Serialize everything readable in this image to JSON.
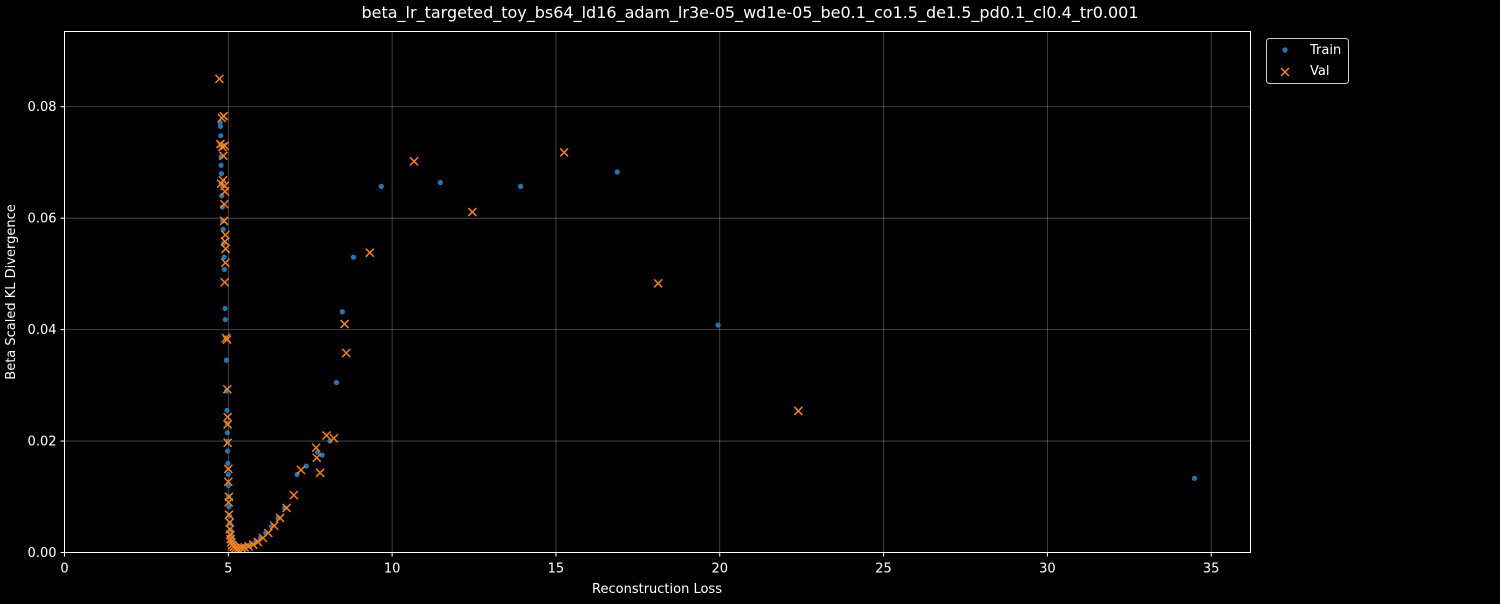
{
  "colors": {
    "background": "#000000",
    "axis": "#ffffff",
    "grid": "#b0b0b0",
    "train": "#1f77b4",
    "val": "#ff7f0e"
  },
  "chart_data": {
    "type": "scatter",
    "title": "beta_lr_targeted_toy_bs64_ld16_adam_lr3e-05_wd1e-05_be0.1_co1.5_de1.5_pd0.1_cl0.4_tr0.001",
    "xlabel": "Reconstruction Loss",
    "ylabel": "Beta Scaled KL Divergence",
    "xlim": [
      0,
      36.2
    ],
    "ylim": [
      0,
      0.0935
    ],
    "xticks": [
      0,
      5,
      10,
      15,
      20,
      25,
      30,
      35
    ],
    "xtick_labels": [
      "0",
      "5",
      "10",
      "15",
      "20",
      "25",
      "30",
      "35"
    ],
    "yticks": [
      0,
      0.02,
      0.04,
      0.06,
      0.08
    ],
    "ytick_labels": [
      "0.00",
      "0.02",
      "0.04",
      "0.06",
      "0.08"
    ],
    "grid": true,
    "legend_position": "outside top-right",
    "series": [
      {
        "name": "Train",
        "marker": "circle",
        "points": [
          [
            4.75,
            0.0772
          ],
          [
            4.76,
            0.0765
          ],
          [
            4.77,
            0.0748
          ],
          [
            4.77,
            0.073
          ],
          [
            4.78,
            0.071
          ],
          [
            4.78,
            0.0695
          ],
          [
            4.79,
            0.068
          ],
          [
            4.8,
            0.066
          ],
          [
            4.8,
            0.064
          ],
          [
            4.82,
            0.062
          ],
          [
            4.83,
            0.0595
          ],
          [
            4.84,
            0.058
          ],
          [
            4.86,
            0.0555
          ],
          [
            4.87,
            0.053
          ],
          [
            4.88,
            0.0508
          ],
          [
            4.9,
            0.0438
          ],
          [
            4.91,
            0.0418
          ],
          [
            4.93,
            0.0385
          ],
          [
            4.94,
            0.0345
          ],
          [
            4.95,
            0.029
          ],
          [
            4.96,
            0.0255
          ],
          [
            4.97,
            0.0232
          ],
          [
            4.97,
            0.0215
          ],
          [
            4.98,
            0.02
          ],
          [
            4.98,
            0.0182
          ],
          [
            4.99,
            0.016
          ],
          [
            5.0,
            0.014
          ],
          [
            5.0,
            0.012
          ],
          [
            5.01,
            0.01
          ],
          [
            5.02,
            0.0082
          ],
          [
            5.03,
            0.0066
          ],
          [
            5.05,
            0.0052
          ],
          [
            5.07,
            0.004
          ],
          [
            5.1,
            0.003
          ],
          [
            5.14,
            0.0022
          ],
          [
            5.2,
            0.0016
          ],
          [
            5.28,
            0.0012
          ],
          [
            5.38,
            0.001
          ],
          [
            5.48,
            0.0011
          ],
          [
            5.58,
            0.0012
          ],
          [
            5.7,
            0.0015
          ],
          [
            5.84,
            0.002
          ],
          [
            5.98,
            0.0026
          ],
          [
            6.14,
            0.0035
          ],
          [
            6.32,
            0.0047
          ],
          [
            6.52,
            0.0062
          ],
          [
            6.72,
            0.008
          ],
          [
            7.1,
            0.014
          ],
          [
            7.38,
            0.0155
          ],
          [
            7.72,
            0.018
          ],
          [
            7.86,
            0.0175
          ],
          [
            8.1,
            0.02
          ],
          [
            8.3,
            0.0305
          ],
          [
            8.48,
            0.0432
          ],
          [
            8.82,
            0.053
          ],
          [
            9.67,
            0.0657
          ],
          [
            11.47,
            0.0664
          ],
          [
            13.92,
            0.0657
          ],
          [
            16.87,
            0.0683
          ],
          [
            19.95,
            0.0408
          ],
          [
            34.49,
            0.0133
          ]
        ]
      },
      {
        "name": "Val",
        "marker": "x",
        "points": [
          [
            4.73,
            0.085
          ],
          [
            4.8,
            0.078
          ],
          [
            4.86,
            0.0783
          ],
          [
            4.76,
            0.0733
          ],
          [
            4.82,
            0.0728
          ],
          [
            4.85,
            0.0712
          ],
          [
            4.89,
            0.073
          ],
          [
            4.78,
            0.0662
          ],
          [
            4.84,
            0.0668
          ],
          [
            4.89,
            0.0658
          ],
          [
            4.9,
            0.0648
          ],
          [
            4.88,
            0.0625
          ],
          [
            4.87,
            0.0595
          ],
          [
            4.91,
            0.057
          ],
          [
            4.9,
            0.0558
          ],
          [
            4.92,
            0.0545
          ],
          [
            4.91,
            0.052
          ],
          [
            4.89,
            0.0485
          ],
          [
            4.93,
            0.0385
          ],
          [
            4.96,
            0.0382
          ],
          [
            4.97,
            0.0293
          ],
          [
            4.98,
            0.0243
          ],
          [
            4.98,
            0.023
          ],
          [
            4.98,
            0.0197
          ],
          [
            5.0,
            0.015
          ],
          [
            5.0,
            0.0127
          ],
          [
            5.02,
            0.01
          ],
          [
            5.01,
            0.009
          ],
          [
            5.02,
            0.0068
          ],
          [
            5.04,
            0.0054
          ],
          [
            5.05,
            0.0042
          ],
          [
            5.06,
            0.0032
          ],
          [
            5.07,
            0.0024
          ],
          [
            5.09,
            0.0018
          ],
          [
            5.12,
            0.0013
          ],
          [
            5.16,
            0.001
          ],
          [
            5.22,
            0.0008
          ],
          [
            5.3,
            0.0007
          ],
          [
            5.4,
            0.0008
          ],
          [
            5.5,
            0.0009
          ],
          [
            5.62,
            0.0011
          ],
          [
            5.76,
            0.0014
          ],
          [
            5.9,
            0.0019
          ],
          [
            6.06,
            0.0026
          ],
          [
            6.22,
            0.0035
          ],
          [
            6.4,
            0.0048
          ],
          [
            6.58,
            0.0062
          ],
          [
            6.78,
            0.008
          ],
          [
            7.0,
            0.0103
          ],
          [
            7.22,
            0.0148
          ],
          [
            7.68,
            0.0188
          ],
          [
            7.7,
            0.017
          ],
          [
            7.8,
            0.0143
          ],
          [
            8.0,
            0.021
          ],
          [
            8.22,
            0.0205
          ],
          [
            8.55,
            0.041
          ],
          [
            8.6,
            0.0358
          ],
          [
            9.32,
            0.0538
          ],
          [
            10.67,
            0.0702
          ],
          [
            12.45,
            0.0611
          ],
          [
            15.25,
            0.0718
          ],
          [
            18.12,
            0.0483
          ],
          [
            22.4,
            0.0254
          ]
        ]
      }
    ]
  }
}
